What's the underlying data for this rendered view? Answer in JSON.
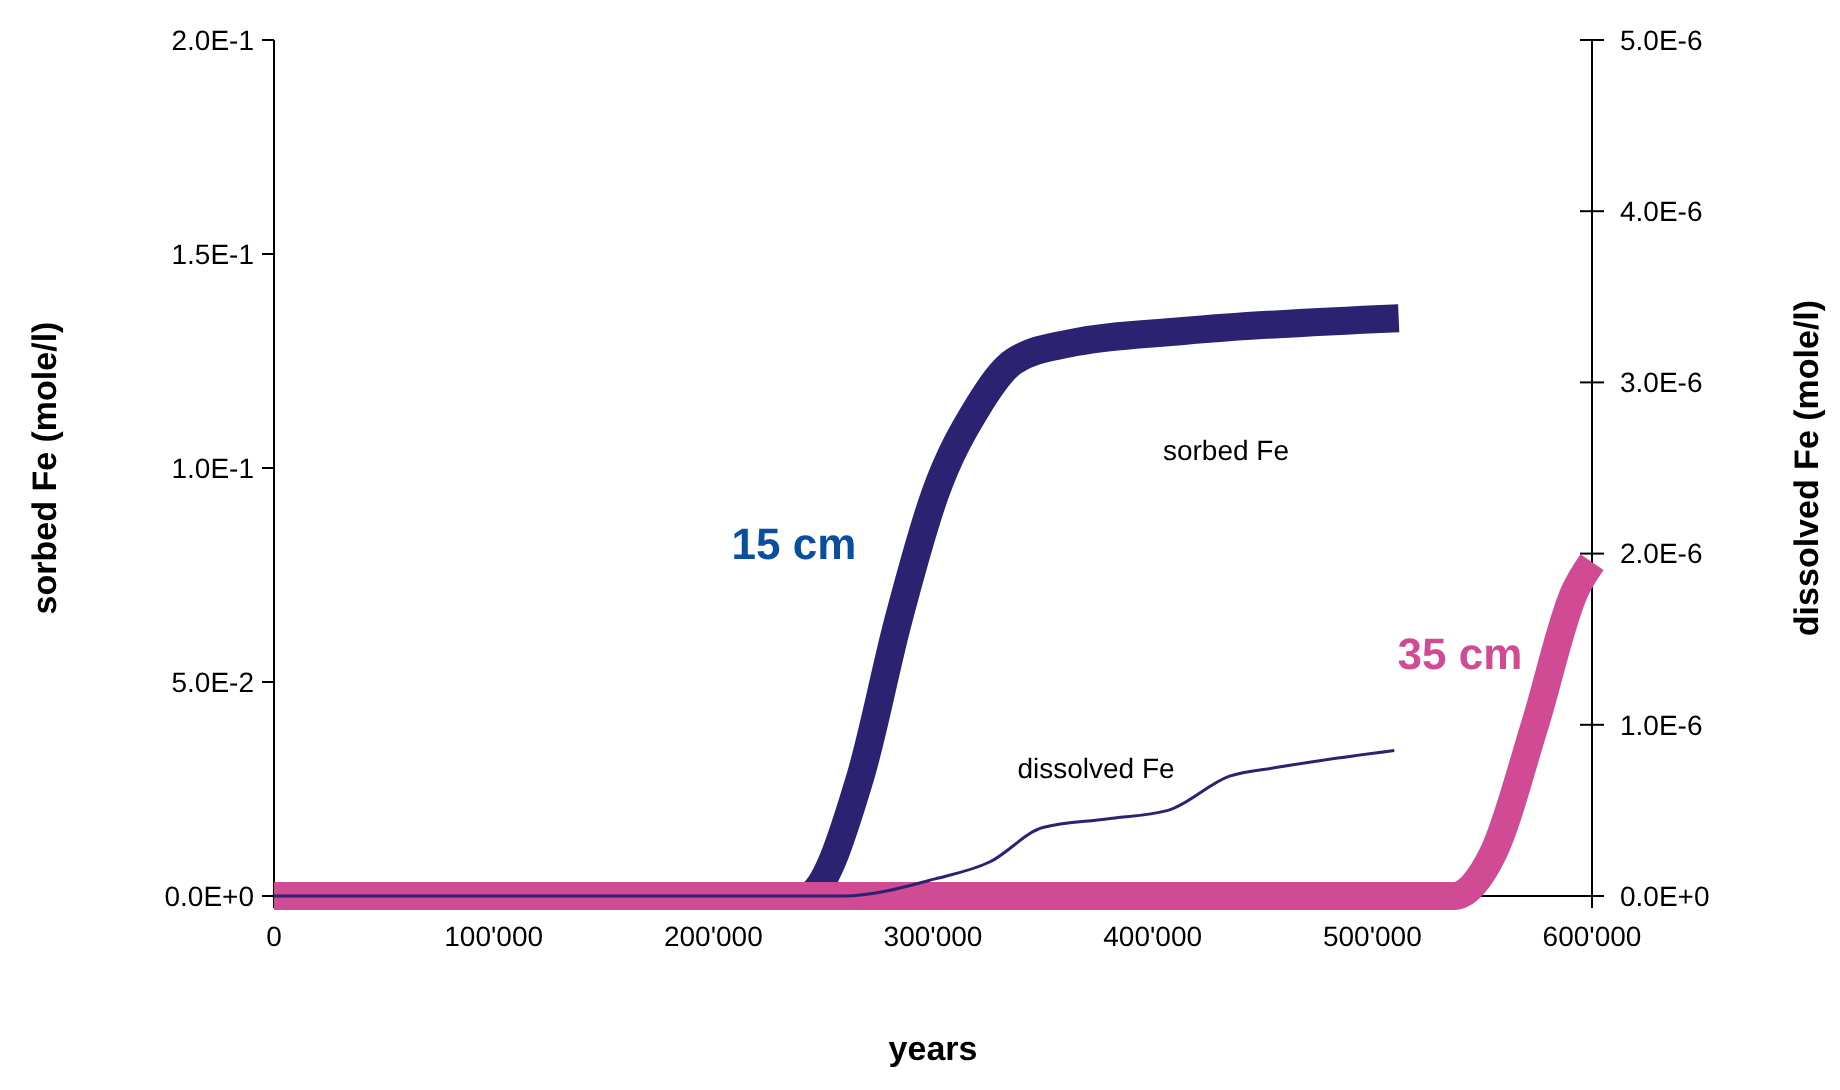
{
  "chart_data": {
    "type": "line",
    "xlabel": "years",
    "ylabel": "sorbed Fe (mole/l)",
    "y2label": "dissolved Fe (mole/l)",
    "xlim": [
      0,
      600000
    ],
    "xticks": [
      0,
      {
        "value": 100000,
        "label": "100'000"
      },
      {
        "value": 200000,
        "label": "200'000"
      },
      {
        "value": 300000,
        "label": "300'000"
      },
      {
        "value": 400000,
        "label": "400'000"
      },
      {
        "value": 500000,
        "label": "500'000"
      },
      {
        "value": 600000,
        "label": "600'000"
      }
    ],
    "ylim": [
      0,
      0.2
    ],
    "yticks": [
      {
        "value": 0,
        "label": "0.0E+0"
      },
      {
        "value": 0.05,
        "label": "5.0E-2"
      },
      {
        "value": 0.1,
        "label": "1.0E-1"
      },
      {
        "value": 0.15,
        "label": "1.5E-1"
      },
      {
        "value": 0.2,
        "label": "2.0E-1"
      }
    ],
    "y2lim": [
      0,
      5e-06
    ],
    "y2ticks": [
      {
        "value": 0,
        "label": "0.0E+0"
      },
      {
        "value": 1e-06,
        "label": "1.0E-6"
      },
      {
        "value": 2e-06,
        "label": "2.0E-6"
      },
      {
        "value": 3e-06,
        "label": "3.0E-6"
      },
      {
        "value": 4e-06,
        "label": "4.0E-6"
      },
      {
        "value": 5e-06,
        "label": "5.0E-6"
      }
    ],
    "grid": false,
    "line_style": "solid",
    "series": [
      {
        "color": "#2b2272",
        "x": [
          0,
          100000,
          200000,
          242000,
          267000,
          284000,
          301000,
          320000,
          337000,
          361000,
          414000,
          512000
        ],
        "values": [
          0,
          0,
          0,
          0,
          0.028,
          0.064,
          0.094,
          0.114,
          0.125,
          0.129,
          0.132,
          0.135
        ]
      },
      {
        "color": "#d04a94",
        "x": [
          0,
          100000,
          200000,
          300000,
          400000,
          500000,
          537000,
          555000,
          574000,
          592000,
          600000
        ],
        "values": [
          0,
          0,
          0,
          0,
          0,
          0,
          0,
          0.01,
          0.04,
          0.071,
          0.078
        ]
      },
      {
        "color": "#2b2272",
        "axis": "y2",
        "x": [
          0,
          100000,
          200000,
          259000,
          301000,
          326000,
          350000,
          379000,
          407000,
          435000,
          456000,
          510000
        ],
        "values": [
          0,
          0,
          0,
          0,
          1e-07,
          2e-07,
          4e-07,
          4.5e-07,
          5e-07,
          7e-07,
          7.5e-07,
          8.5e-07
        ]
      }
    ],
    "annotations": [
      "15 cm",
      "sorbed Fe",
      "dissolved Fe",
      "35 cm"
    ]
  }
}
